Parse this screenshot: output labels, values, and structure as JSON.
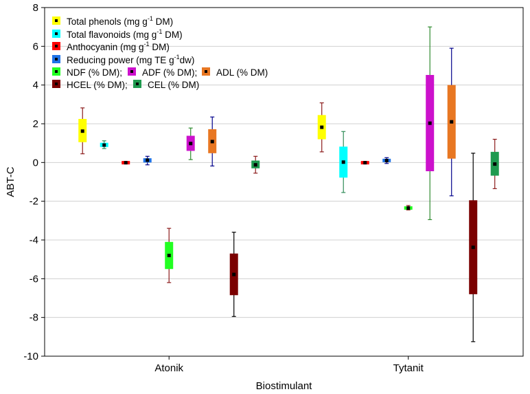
{
  "chart_data": {
    "type": "box",
    "title": "",
    "xlabel": "Biostimulant",
    "ylabel": "ABT-C",
    "ylim": [
      -10,
      8
    ],
    "yticks": [
      -10,
      -8,
      -6,
      -4,
      -2,
      0,
      2,
      4,
      6,
      8
    ],
    "grid": "horizontal",
    "categories": [
      "Atonik",
      "Tytanit"
    ],
    "legend_position": "top-left",
    "series": [
      {
        "name": "Total phenols (mg g-1 DM)",
        "label_parts": [
          "Total phenols (mg g",
          "-1",
          " DM)"
        ],
        "color": "#ffff00",
        "whisker_color": "#8b1a1a",
        "boxes": {
          "Atonik": {
            "low": 0.45,
            "q1": 1.05,
            "median": 1.62,
            "q3": 2.25,
            "high": 2.82
          },
          "Tytanit": {
            "low": 0.55,
            "q1": 1.2,
            "median": 1.82,
            "q3": 2.45,
            "high": 3.08
          }
        }
      },
      {
        "name": "Total flavonoids (mg g-1 DM)",
        "label_parts": [
          "Total flavonoids (mg g",
          "-1",
          " DM)"
        ],
        "color": "#00ffff",
        "whisker_color": "#2e8b57",
        "boxes": {
          "Atonik": {
            "low": 0.72,
            "q1": 0.8,
            "median": 0.9,
            "q3": 1.02,
            "high": 1.12
          },
          "Tytanit": {
            "low": -1.55,
            "q1": -0.78,
            "median": 0.02,
            "q3": 0.82,
            "high": 1.6
          }
        }
      },
      {
        "name": "Anthocyanin (mg g-1 DM)",
        "label_parts": [
          "Anthocyanin (mg g",
          "-1",
          " DM)"
        ],
        "color": "#ff0000",
        "whisker_color": "#8b1a1a",
        "boxes": {
          "Atonik": {
            "low": -0.05,
            "q1": -0.03,
            "median": -0.01,
            "q3": 0.01,
            "high": 0.03
          },
          "Tytanit": {
            "low": -0.05,
            "q1": -0.03,
            "median": -0.01,
            "q3": 0.01,
            "high": 0.03
          }
        }
      },
      {
        "name": "Reducing power (mg TE g-1dw)",
        "label_parts": [
          "Reducing power (mg TE g",
          "-1",
          "dw)"
        ],
        "color": "#1e73e8",
        "whisker_color": "#00008b",
        "boxes": {
          "Atonik": {
            "low": -0.12,
            "q1": 0.0,
            "median": 0.12,
            "q3": 0.22,
            "high": 0.32
          },
          "Tytanit": {
            "low": -0.05,
            "q1": 0.03,
            "median": 0.1,
            "q3": 0.18,
            "high": 0.25
          }
        }
      },
      {
        "name": "NDF (% DM)",
        "label_parts": [
          "NDF (% DM);"
        ],
        "color": "#22ff22",
        "whisker_color": "#8b1a1a",
        "boxes": {
          "Atonik": {
            "low": -6.2,
            "q1": -5.5,
            "median": -4.8,
            "q3": -4.1,
            "high": -3.4
          },
          "Tytanit": {
            "low": -2.45,
            "q1": -2.4,
            "median": -2.35,
            "q3": -2.3,
            "high": -2.22
          }
        }
      },
      {
        "name": "ADF (% DM)",
        "label_parts": [
          "ADF (% DM);"
        ],
        "color": "#cc11cc",
        "whisker_color": "#2e8b2e",
        "boxes": {
          "Atonik": {
            "low": 0.15,
            "q1": 0.6,
            "median": 0.98,
            "q3": 1.38,
            "high": 1.78
          },
          "Tytanit": {
            "low": -2.95,
            "q1": -0.45,
            "median": 2.03,
            "q3": 4.52,
            "high": 7.0
          }
        }
      },
      {
        "name": "ADL (% DM)",
        "label_parts": [
          "ADL (% DM)"
        ],
        "color": "#e87722",
        "whisker_color": "#00008b",
        "boxes": {
          "Atonik": {
            "low": -0.18,
            "q1": 0.48,
            "median": 1.08,
            "q3": 1.72,
            "high": 2.35
          },
          "Tytanit": {
            "low": -1.72,
            "q1": 0.2,
            "median": 2.1,
            "q3": 4.0,
            "high": 5.9
          }
        }
      },
      {
        "name": "HCEL (% DM)",
        "label_parts": [
          "HCEL (% DM);"
        ],
        "color": "#7b0000",
        "whisker_color": "#000000",
        "boxes": {
          "Atonik": {
            "low": -7.95,
            "q1": -6.85,
            "median": -5.78,
            "q3": -4.7,
            "high": -3.6
          },
          "Tytanit": {
            "low": -9.25,
            "q1": -6.8,
            "median": -4.38,
            "q3": -1.95,
            "high": 0.48
          }
        }
      },
      {
        "name": "CEL (% DM)",
        "label_parts": [
          "CEL (% DM)"
        ],
        "color": "#1f9a4f",
        "whisker_color": "#8b1a1a",
        "boxes": {
          "Atonik": {
            "low": -0.55,
            "q1": -0.3,
            "median": -0.12,
            "q3": 0.1,
            "high": 0.32
          },
          "Tytanit": {
            "low": -1.35,
            "q1": -0.68,
            "median": -0.08,
            "q3": 0.55,
            "high": 1.2
          }
        }
      }
    ]
  }
}
